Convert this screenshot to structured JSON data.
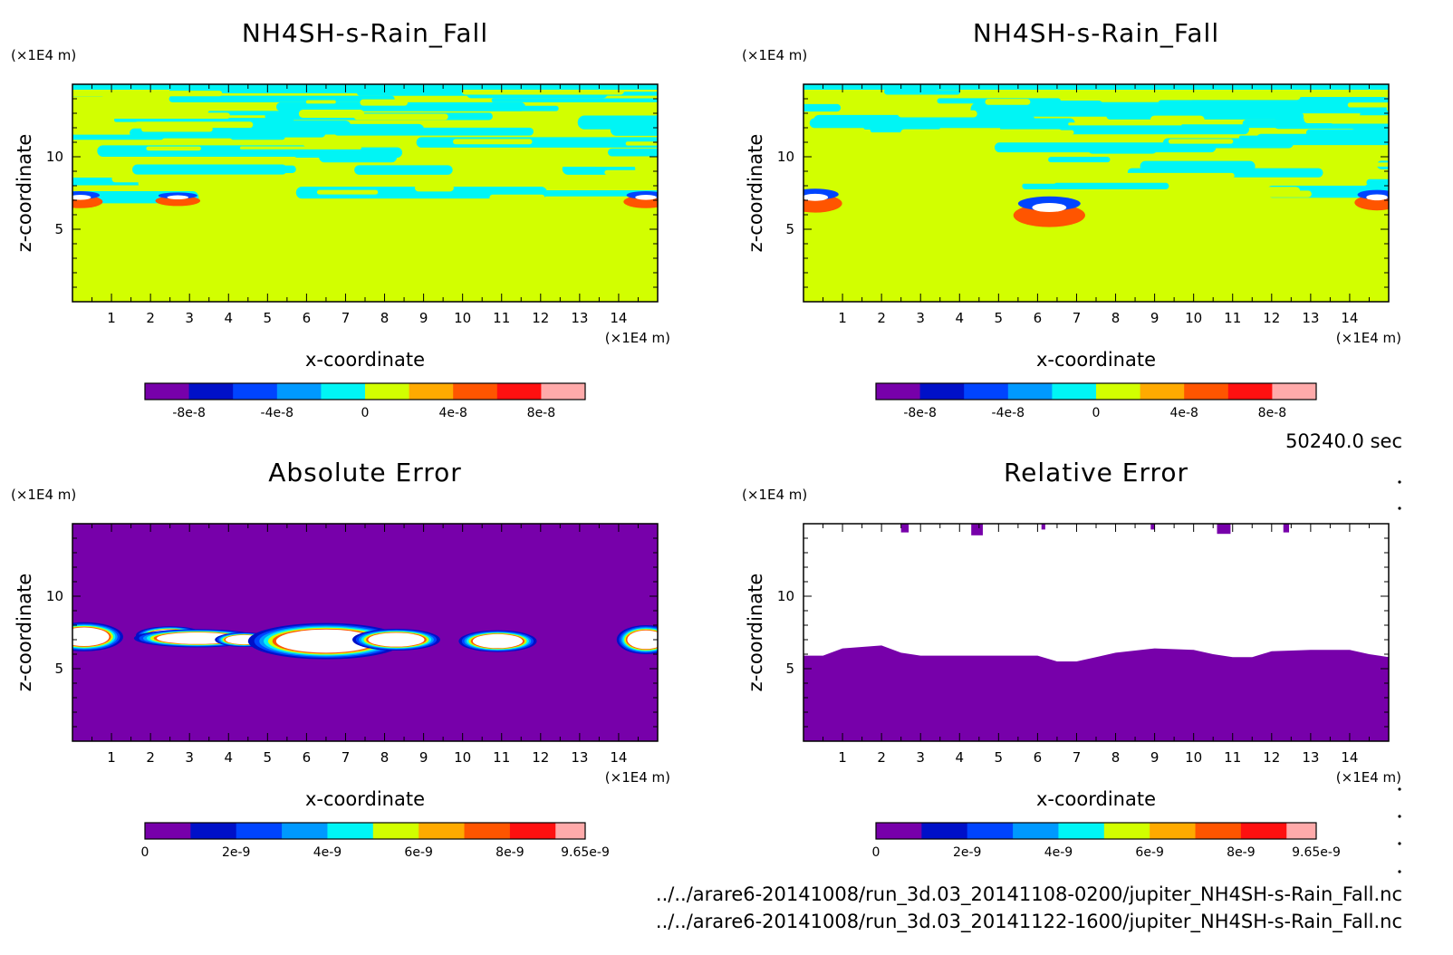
{
  "time_label": "50240.0 sec",
  "files": [
    "../../arare6-20141008/run_3d.03_20141108-0200/jupiter_NH4SH-s-Rain_Fall.nc",
    "../../arare6-20141008/run_3d.03_20141122-1600/jupiter_NH4SH-s-Rain_Fall.nc"
  ],
  "colors": {
    "c_neg8": "#7700aa",
    "c_neg6": "#0010c8",
    "c_neg4": "#0044ff",
    "c_neg2": "#0099ff",
    "c_0": "#00f5f5",
    "c_2": "#d2ff00",
    "c_4": "#ffaa00",
    "c_6": "#ff5500",
    "c_8": "#ff1010",
    "c_10": "#ffaaaa",
    "above": "#ffffff"
  },
  "chart_data": [
    {
      "type": "heatmap",
      "title": "NH4SH-s-Rain_Fall",
      "xlabel": "x-coordinate",
      "ylabel": "z-coordinate",
      "xunit": "(×1E4 m)",
      "yunit": "(×1E4 m)",
      "xlim": [
        0,
        15
      ],
      "ylim": [
        0,
        15
      ],
      "xticks": [
        1,
        2,
        3,
        4,
        5,
        6,
        7,
        8,
        9,
        10,
        11,
        12,
        13,
        14
      ],
      "yticks": [
        5,
        10
      ],
      "colorbar": {
        "levels": [
          -1e-07,
          -8e-08,
          -6e-08,
          -4e-08,
          -2e-08,
          0,
          2e-08,
          4e-08,
          6e-08,
          8e-08,
          1e-07
        ],
        "labels": [
          {
            "v": -8e-08,
            "t": "-8e-8"
          },
          {
            "v": -4e-08,
            "t": "-4e-8"
          },
          {
            "v": 0,
            "t": "0"
          },
          {
            "v": 4e-08,
            "t": "4e-8"
          },
          {
            "v": 8e-08,
            "t": "8e-8"
          }
        ]
      },
      "field": {
        "background": "c_2",
        "cloud_base": 7.0,
        "cloud_top": 15.0,
        "pattern": "bands",
        "blobs": [
          [
            0.2,
            7.2,
            0.5,
            0.5
          ],
          [
            2.7,
            7.2,
            0.5,
            0.4
          ],
          [
            14.7,
            7.2,
            0.5,
            0.5
          ]
        ]
      }
    },
    {
      "type": "heatmap",
      "title": "NH4SH-s-Rain_Fall",
      "xlabel": "x-coordinate",
      "ylabel": "z-coordinate",
      "xunit": "(×1E4 m)",
      "yunit": "(×1E4 m)",
      "xlim": [
        0,
        15
      ],
      "ylim": [
        0,
        15
      ],
      "xticks": [
        1,
        2,
        3,
        4,
        5,
        6,
        7,
        8,
        9,
        10,
        11,
        12,
        13,
        14
      ],
      "yticks": [
        5,
        10
      ],
      "colorbar": {
        "levels": [
          -1e-07,
          -8e-08,
          -6e-08,
          -4e-08,
          -2e-08,
          0,
          2e-08,
          4e-08,
          6e-08,
          8e-08,
          1e-07
        ],
        "labels": [
          {
            "v": -8e-08,
            "t": "-8e-8"
          },
          {
            "v": -4e-08,
            "t": "-4e-8"
          },
          {
            "v": 0,
            "t": "0"
          },
          {
            "v": 4e-08,
            "t": "4e-8"
          },
          {
            "v": 8e-08,
            "t": "8e-8"
          }
        ]
      },
      "field": {
        "background": "c_2",
        "cloud_base": 7.0,
        "cloud_top": 15.0,
        "pattern": "bands",
        "blobs": [
          [
            0.3,
            7.2,
            0.6,
            0.7
          ],
          [
            6.3,
            6.5,
            0.8,
            0.9
          ],
          [
            14.7,
            7.2,
            0.5,
            0.6
          ]
        ]
      }
    },
    {
      "type": "heatmap",
      "title": "Absolute Error",
      "xlabel": "x-coordinate",
      "ylabel": "z-coordinate",
      "xunit": "(×1E4 m)",
      "yunit": "(×1E4 m)",
      "xlim": [
        0,
        15
      ],
      "ylim": [
        0,
        15
      ],
      "xticks": [
        1,
        2,
        3,
        4,
        5,
        6,
        7,
        8,
        9,
        10,
        11,
        12,
        13,
        14
      ],
      "yticks": [
        5,
        10
      ],
      "colorbar": {
        "levels": [
          0,
          1e-09,
          2e-09,
          3e-09,
          4e-09,
          5e-09,
          6e-09,
          7e-09,
          8e-09,
          9e-09,
          9.65e-09
        ],
        "labels": [
          {
            "v": 0,
            "t": "0"
          },
          {
            "v": 2e-09,
            "t": "2e-9"
          },
          {
            "v": 4e-09,
            "t": "4e-9"
          },
          {
            "v": 6e-09,
            "t": "6e-9"
          },
          {
            "v": 8e-09,
            "t": "8e-9"
          },
          {
            "v": 9.65e-09,
            "t": "9.65e-9"
          }
        ]
      },
      "field": {
        "background": "c_neg8",
        "blobs": [
          [
            0.3,
            7.2,
            0.8,
            0.8
          ],
          [
            2.5,
            7.3,
            0.7,
            0.5
          ],
          [
            3.2,
            7.1,
            1.3,
            0.5
          ],
          [
            4.4,
            7.0,
            0.6,
            0.4
          ],
          [
            6.5,
            6.9,
            1.6,
            1.0
          ],
          [
            8.3,
            7.0,
            0.9,
            0.6
          ],
          [
            10.9,
            6.9,
            0.8,
            0.6
          ],
          [
            14.7,
            7.0,
            0.6,
            0.8
          ]
        ]
      }
    },
    {
      "type": "heatmap",
      "title": "Relative Error",
      "xlabel": "x-coordinate",
      "ylabel": "z-coordinate",
      "xunit": "(×1E4 m)",
      "yunit": "(×1E4 m)",
      "xlim": [
        0,
        15
      ],
      "ylim": [
        0,
        15
      ],
      "xticks": [
        1,
        2,
        3,
        4,
        5,
        6,
        7,
        8,
        9,
        10,
        11,
        12,
        13,
        14
      ],
      "yticks": [
        5,
        10
      ],
      "colorbar": {
        "levels": [
          0,
          1e-09,
          2e-09,
          3e-09,
          4e-09,
          5e-09,
          6e-09,
          7e-09,
          8e-09,
          9e-09,
          9.65e-09
        ],
        "labels": [
          {
            "v": 0,
            "t": "0"
          },
          {
            "v": 2e-09,
            "t": "2e-9"
          },
          {
            "v": 4e-09,
            "t": "4e-9"
          },
          {
            "v": 6e-09,
            "t": "6e-9"
          },
          {
            "v": 8e-09,
            "t": "8e-9"
          },
          {
            "v": 9.65e-09,
            "t": "9.65e-9"
          }
        ]
      },
      "field": {
        "background": "above",
        "boundary": [
          [
            0,
            5.9
          ],
          [
            0.5,
            5.9
          ],
          [
            1,
            6.4
          ],
          [
            2,
            6.6
          ],
          [
            2.5,
            6.1
          ],
          [
            3,
            5.9
          ],
          [
            4,
            5.9
          ],
          [
            5,
            5.9
          ],
          [
            6,
            5.9
          ],
          [
            6.5,
            5.5
          ],
          [
            7,
            5.5
          ],
          [
            7.5,
            5.8
          ],
          [
            8,
            6.1
          ],
          [
            9,
            6.4
          ],
          [
            10,
            6.3
          ],
          [
            10.5,
            6.0
          ],
          [
            11,
            5.8
          ],
          [
            11.5,
            5.8
          ],
          [
            12,
            6.2
          ],
          [
            13,
            6.3
          ],
          [
            14,
            6.3
          ],
          [
            14.5,
            6.0
          ],
          [
            15,
            5.8
          ]
        ],
        "specks": [
          [
            2.5,
            14.4,
            0.15
          ],
          [
            4.3,
            14.2,
            0.25
          ],
          [
            10.6,
            14.3,
            0.3
          ],
          [
            12.3,
            14.4,
            0.1
          ],
          [
            6.1,
            14.6,
            0.05
          ],
          [
            8.9,
            14.6,
            0.05
          ]
        ]
      }
    }
  ]
}
